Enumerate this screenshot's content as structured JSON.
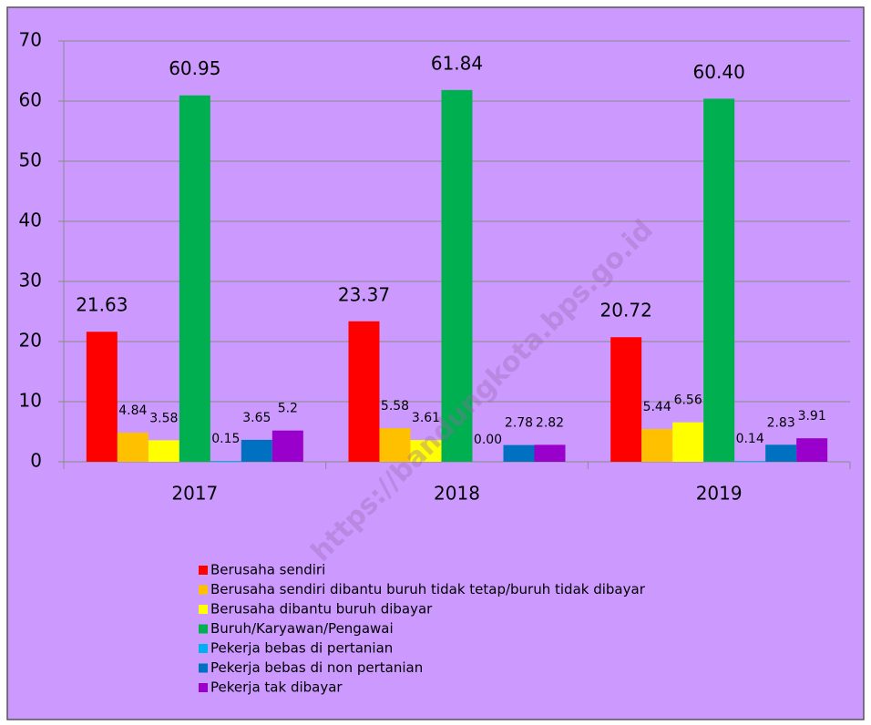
{
  "chart_data": {
    "type": "bar",
    "categories": [
      "2017",
      "2018",
      "2019"
    ],
    "series": [
      {
        "name": "Berusaha sendiri",
        "color": "#ff0000",
        "values": [
          21.63,
          23.37,
          20.72
        ],
        "value_labels": [
          "21.63",
          "23.37",
          "20.72"
        ]
      },
      {
        "name": "Berusaha sendiri dibantu buruh tidak tetap/buruh tidak dibayar",
        "color": "#ffc000",
        "values": [
          4.84,
          5.58,
          5.44
        ],
        "value_labels": [
          "4.84",
          "5.58",
          "5.44"
        ]
      },
      {
        "name": "Berusaha dibantu buruh dibayar",
        "color": "#ffff00",
        "values": [
          3.58,
          3.61,
          6.56
        ],
        "value_labels": [
          "3.58",
          "3.61",
          "6.56"
        ]
      },
      {
        "name": "Buruh/Karyawan/Pengawai",
        "color": "#00b050",
        "values": [
          60.95,
          61.84,
          60.4
        ],
        "value_labels": [
          "60.95",
          "61.84",
          "60.40"
        ]
      },
      {
        "name": "Pekerja bebas di pertanian",
        "color": "#00b0f0",
        "values": [
          0.15,
          0.0,
          0.14
        ],
        "value_labels": [
          "0.15",
          "0.00",
          "0.14"
        ]
      },
      {
        "name": "Pekerja bebas di non pertanian",
        "color": "#0070c0",
        "values": [
          3.65,
          2.78,
          2.83
        ],
        "value_labels": [
          "3.65",
          "2.78",
          "2.83"
        ]
      },
      {
        "name": "Pekerja tak dibayar",
        "color": "#9900cc",
        "values": [
          5.2,
          2.82,
          3.91
        ],
        "value_labels": [
          "5.2",
          "2.82",
          "3.91"
        ]
      }
    ],
    "ylim": [
      0,
      70
    ],
    "yticks": [
      0,
      10,
      20,
      30,
      40,
      50,
      60,
      70
    ],
    "grid": true,
    "legend": "bottom",
    "background": "#cc99ff",
    "watermark": "https://bandungkota.bps.go.id"
  }
}
